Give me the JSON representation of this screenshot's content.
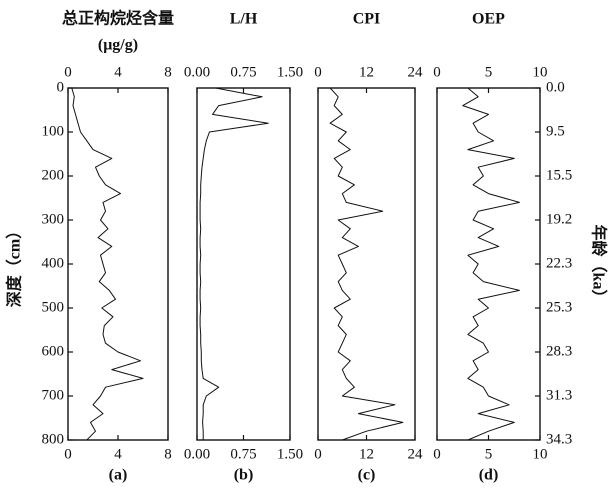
{
  "chart_data": [
    {
      "type": "line",
      "title": "总正构烷烃含量",
      "subtitle": "(μg/g)",
      "panel_label": "(a)",
      "ylabel": "深度（cm）",
      "ylim": [
        0,
        800
      ],
      "yticks": [
        0,
        100,
        200,
        300,
        400,
        500,
        600,
        700,
        800
      ],
      "xlim": [
        0,
        8
      ],
      "xticks": [
        0,
        4,
        8
      ],
      "series": [
        {
          "color": "#111111",
          "y": [
            0,
            20,
            40,
            60,
            80,
            100,
            120,
            140,
            160,
            180,
            200,
            220,
            240,
            260,
            280,
            300,
            320,
            340,
            360,
            380,
            400,
            420,
            440,
            460,
            480,
            500,
            520,
            540,
            560,
            580,
            600,
            620,
            640,
            660,
            680,
            700,
            720,
            740,
            760,
            780,
            800
          ],
          "values": [
            0.3,
            0.5,
            0.4,
            0.6,
            0.8,
            1.0,
            1.5,
            2.0,
            3.5,
            2.2,
            2.5,
            3.0,
            4.2,
            2.8,
            3.0,
            2.6,
            3.2,
            2.4,
            3.5,
            2.6,
            2.8,
            3.0,
            2.5,
            3.3,
            3.8,
            2.7,
            3.6,
            2.9,
            2.8,
            3.0,
            4.0,
            5.8,
            3.5,
            6.0,
            3.0,
            2.6,
            2.0,
            2.8,
            1.8,
            2.2,
            1.5
          ]
        }
      ]
    },
    {
      "type": "line",
      "title": "L/H",
      "panel_label": "(b)",
      "xlim": [
        0,
        1.5
      ],
      "xticks": [
        {
          "value": 0,
          "label": "0.00"
        },
        {
          "value": 0.75,
          "label": "0.75"
        },
        {
          "value": 1.5,
          "label": "1.50"
        }
      ],
      "series": [
        {
          "color": "#111111",
          "y": [
            0,
            20,
            40,
            60,
            80,
            100,
            120,
            140,
            160,
            180,
            200,
            220,
            240,
            260,
            280,
            300,
            320,
            340,
            360,
            380,
            400,
            420,
            440,
            460,
            480,
            500,
            520,
            540,
            560,
            580,
            600,
            620,
            640,
            660,
            680,
            700,
            720,
            740,
            760,
            780,
            800
          ],
          "values": [
            0.3,
            1.05,
            0.35,
            0.25,
            1.15,
            0.2,
            0.15,
            0.12,
            0.1,
            0.08,
            0.07,
            0.06,
            0.06,
            0.05,
            0.05,
            0.05,
            0.06,
            0.05,
            0.05,
            0.06,
            0.05,
            0.05,
            0.06,
            0.05,
            0.05,
            0.06,
            0.05,
            0.05,
            0.06,
            0.06,
            0.07,
            0.07,
            0.08,
            0.1,
            0.35,
            0.15,
            0.1,
            0.1,
            0.09,
            0.1,
            0.1
          ]
        }
      ]
    },
    {
      "type": "line",
      "title": "CPI",
      "panel_label": "(c)",
      "xlim": [
        0,
        24
      ],
      "xticks": [
        0,
        12,
        24
      ],
      "series": [
        {
          "color": "#111111",
          "y": [
            0,
            20,
            40,
            60,
            80,
            100,
            120,
            140,
            160,
            180,
            200,
            220,
            240,
            260,
            280,
            300,
            320,
            340,
            360,
            380,
            400,
            420,
            440,
            460,
            480,
            500,
            520,
            540,
            560,
            580,
            600,
            620,
            640,
            660,
            680,
            700,
            720,
            740,
            760,
            780,
            800
          ],
          "values": [
            3,
            5,
            4,
            6,
            3,
            7,
            5,
            8,
            4,
            6,
            5,
            9,
            6,
            7,
            16,
            5,
            8,
            6,
            10,
            5,
            6,
            7,
            5,
            6,
            8,
            4,
            6,
            5,
            7,
            6,
            5,
            8,
            6,
            7,
            9,
            6,
            19,
            10,
            21,
            12,
            6
          ]
        }
      ]
    },
    {
      "type": "line",
      "title": "OEP",
      "panel_label": "(d)",
      "xlim": [
        0,
        10
      ],
      "xticks": [
        0,
        5,
        10
      ],
      "y2label": "年龄（ka）",
      "y2ticks": [
        {
          "value": 0,
          "label": "0.0"
        },
        9.5,
        15.5,
        19.2,
        22.3,
        25.3,
        28.3,
        31.3,
        34.3
      ],
      "series": [
        {
          "color": "#111111",
          "y": [
            0,
            20,
            40,
            60,
            80,
            100,
            120,
            140,
            160,
            180,
            200,
            220,
            240,
            260,
            280,
            300,
            320,
            340,
            360,
            380,
            400,
            420,
            440,
            460,
            480,
            500,
            520,
            540,
            560,
            580,
            600,
            620,
            640,
            660,
            680,
            700,
            720,
            740,
            760,
            780,
            800
          ],
          "values": [
            3,
            4,
            2.5,
            5,
            3.5,
            4,
            5.5,
            3,
            7.5,
            4,
            4.5,
            3.5,
            5,
            8,
            4,
            3.5,
            5.5,
            4,
            6,
            3,
            4,
            3.5,
            4.5,
            8,
            4,
            5,
            3.5,
            4,
            3,
            4.5,
            5,
            3.5,
            4,
            3,
            4.5,
            5,
            7,
            4,
            7.5,
            5,
            3
          ]
        }
      ]
    }
  ]
}
